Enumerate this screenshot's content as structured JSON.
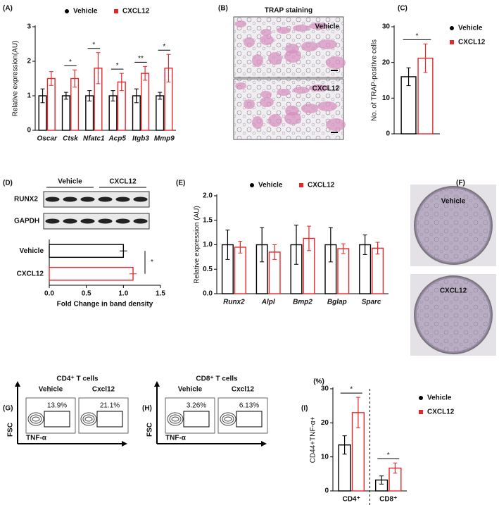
{
  "chart_data": [
    {
      "type": "bar",
      "panel": "(A)",
      "ylabel": "Relative expression(AU)",
      "legend": "top",
      "italic_categories": true,
      "categories": [
        "Oscar",
        "Ctsk",
        "Nfatc1",
        "Acp5",
        "Itgb3",
        "Mmp9"
      ],
      "series": [
        {
          "name": "Vehicle",
          "color": "#000000",
          "marker": "circle",
          "values": [
            1,
            1,
            1,
            1,
            1,
            1
          ],
          "errors": [
            0.2,
            0.1,
            0.15,
            0.15,
            0.2,
            0.1
          ]
        },
        {
          "name": "CXCL12",
          "color": "#e8262a",
          "marker": "square",
          "values": [
            1.5,
            1.5,
            1.8,
            1.4,
            1.65,
            1.8
          ],
          "errors": [
            0.2,
            0.25,
            0.45,
            0.25,
            0.2,
            0.4
          ]
        }
      ],
      "significance": [
        null,
        "*",
        "*",
        "*",
        "**",
        "*"
      ],
      "ylim": [
        0,
        3
      ],
      "yticks": [
        0,
        1,
        2,
        3
      ]
    },
    {
      "type": "image",
      "panel": "(B)",
      "title": "TRAP staining",
      "labels": [
        "Vehicle",
        "CXCL12"
      ],
      "color": "#d58fbf"
    },
    {
      "type": "bar",
      "panel": "(C)",
      "ylabel": "No. of TRAP-positive cells",
      "legend": "right",
      "categories": [
        null
      ],
      "series": [
        {
          "name": "Vehicle",
          "color": "#000000",
          "marker": "circle",
          "values": [
            16
          ],
          "errors": [
            2.5
          ]
        },
        {
          "name": "CXCL12",
          "color": "#e8262a",
          "marker": "square",
          "values": [
            21.2
          ],
          "errors": [
            4
          ]
        }
      ],
      "significance": [
        "*"
      ],
      "ylim": [
        0,
        30
      ],
      "yticks": [
        0,
        10,
        20,
        30
      ]
    },
    {
      "type": "blot",
      "panel": "(D)",
      "groups": [
        "Vehicle",
        "CXCL12"
      ],
      "rows": [
        "RUNX2",
        "GAPDH"
      ]
    },
    {
      "type": "hbar",
      "categories": [
        "Vehicle",
        "CXCL12"
      ],
      "values": [
        1.0,
        1.13
      ],
      "errors": [
        0.05,
        0.05
      ],
      "colors": [
        "#000000",
        "#e8262a"
      ],
      "significance": "*",
      "xlabel": "Fold Change in band density",
      "xlim": [
        0,
        1.5
      ],
      "xticks": [
        {
          "value": 0,
          "label": "0.0"
        },
        0.5,
        {
          "value": 1,
          "label": "1.0"
        },
        1.5
      ]
    },
    {
      "type": "bar",
      "panel": "(E)",
      "ylabel": "Relative expression (AU)",
      "legend": "top",
      "italic_categories": true,
      "categories": [
        "Runx2",
        "Alpl",
        "Bmp2",
        "Bglap",
        "Sparc"
      ],
      "series": [
        {
          "name": "Vehicle",
          "color": "#000000",
          "marker": "circle",
          "values": [
            1,
            1,
            1,
            1,
            1
          ],
          "errors": [
            0.3,
            0.35,
            0.4,
            0.35,
            0.2
          ]
        },
        {
          "name": "CXCL12",
          "color": "#e8262a",
          "marker": "square",
          "values": [
            0.95,
            0.85,
            1.13,
            0.92,
            0.93
          ],
          "errors": [
            0.12,
            0.15,
            0.25,
            0.1,
            0.12
          ]
        }
      ],
      "significance": [
        null,
        null,
        null,
        null,
        null
      ],
      "ylim": [
        0,
        2
      ],
      "yticks": [
        {
          "value": 0,
          "label": "0.0"
        },
        0.5,
        {
          "value": 1,
          "label": "1.0"
        },
        1.5,
        {
          "value": 2,
          "label": "2.0"
        }
      ]
    },
    {
      "type": "image",
      "panel": "(F)",
      "labels": [
        "Vehicle",
        "CXCL12"
      ],
      "color": "#9a8aa8",
      "shape": "dish"
    },
    {
      "type": "flow",
      "panel": "(G)",
      "title": "CD4⁺ T cells",
      "samples": [
        "Vehicle",
        "Cxcl12"
      ],
      "percentages": [
        "13.9%",
        "21.1%"
      ],
      "ylabel": "FSC",
      "xlabel": "TNF-α"
    },
    {
      "type": "flow",
      "panel": "(H)",
      "title": "CD8⁺ T cells",
      "samples": [
        "Vehicle",
        "Cxcl12"
      ],
      "percentages": [
        "3.26%",
        "6.13%"
      ],
      "ylabel": "FSC",
      "xlabel": "TNF-α"
    },
    {
      "type": "bar",
      "panel": "(I)",
      "unit": "(%)",
      "ylabel": "CD44+TNF-α+",
      "legend": "right",
      "categories": [
        "CD4⁺",
        "CD8⁺"
      ],
      "series": [
        {
          "name": "Vehicle",
          "color": "#000000",
          "marker": "circle",
          "values": [
            13.5,
            3.2
          ],
          "errors": [
            2.7,
            1.2
          ]
        },
        {
          "name": "CXCL12",
          "color": "#e8262a",
          "marker": "square",
          "values": [
            23,
            6.7
          ],
          "errors": [
            4.5,
            1.5
          ]
        }
      ],
      "significance": [
        "*",
        "*"
      ],
      "ylim": [
        0,
        30
      ],
      "yticks": [
        0,
        10,
        20,
        30
      ]
    }
  ]
}
